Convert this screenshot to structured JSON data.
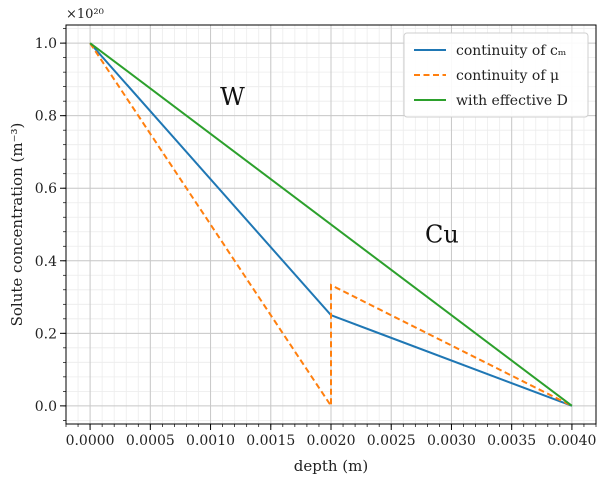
{
  "chart_data": {
    "type": "line",
    "xlabel": "depth (m)",
    "ylabel": "Solute concentration (m⁻³)",
    "y_offset_label": "×10²⁰",
    "xlim": [
      -0.0002,
      0.0042
    ],
    "ylim": [
      -0.05,
      1.05
    ],
    "xticks": [
      0.0,
      0.0005,
      0.001,
      0.0015,
      0.002,
      0.0025,
      0.003,
      0.0035,
      0.004
    ],
    "xtick_labels": [
      "0.0000",
      "0.0005",
      "0.0010",
      "0.0015",
      "0.0020",
      "0.0025",
      "0.0030",
      "0.0035",
      "0.0040"
    ],
    "yticks": [
      0.0,
      0.2,
      0.4,
      0.6,
      0.8,
      1.0
    ],
    "ytick_labels": [
      "0.0",
      "0.2",
      "0.4",
      "0.6",
      "0.8",
      "1.0"
    ],
    "grid": true,
    "minor_grid": true,
    "legend_position": "top-right",
    "series": [
      {
        "name": "continuity of cₘ",
        "color": "#1f77b4",
        "style": "solid",
        "x": [
          0.0,
          0.002,
          0.004
        ],
        "y": [
          1.0,
          0.25,
          0.0
        ]
      },
      {
        "name": "continuity of μ",
        "color": "#ff7f0e",
        "style": "dashed",
        "x": [
          0.0,
          0.002,
          0.002,
          0.004
        ],
        "y": [
          1.0,
          0.0,
          0.333,
          0.0
        ]
      },
      {
        "name": "with effective D",
        "color": "#2ca02c",
        "style": "solid",
        "x": [
          0.0,
          0.004
        ],
        "y": [
          1.0,
          0.0
        ]
      }
    ],
    "annotations": [
      {
        "text": "W",
        "x": 0.00108,
        "y": 0.83
      },
      {
        "text": "Cu",
        "x": 0.00278,
        "y": 0.45
      }
    ]
  }
}
